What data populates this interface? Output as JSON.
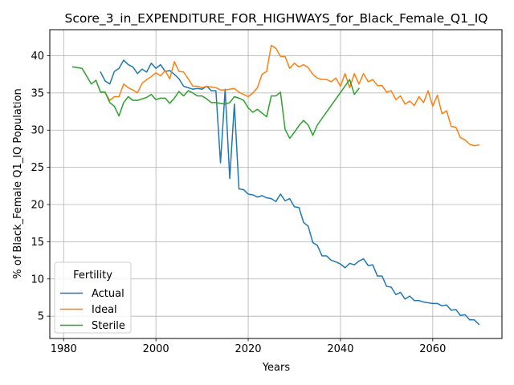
{
  "chart_data": {
    "type": "line",
    "title": "Score_3_in_EXPENDITURE_FOR_HIGHWAYS_for_Black_Female_Q1_IQ",
    "xlabel": "Years",
    "ylabel": "% of Black_Female Q1_IQ Population",
    "xlim": [
      1977,
      2075
    ],
    "ylim": [
      2,
      43.5
    ],
    "xticks": [
      1980,
      2000,
      2020,
      2040,
      2060
    ],
    "yticks": [
      5,
      10,
      15,
      20,
      25,
      30,
      35,
      40
    ],
    "grid": true,
    "legend": {
      "title": "Fertility",
      "position": "lower-left"
    },
    "series": [
      {
        "name": "Actual",
        "color": "#1f77b4",
        "x": [
          1988,
          1989,
          1990,
          1991,
          1992,
          1993,
          1994,
          1995,
          1996,
          1997,
          1998,
          1999,
          2000,
          2001,
          2002,
          2003,
          2004,
          2005,
          2006,
          2007,
          2008,
          2009,
          2010,
          2011,
          2012,
          2013,
          2014,
          2015,
          2016,
          2017,
          2018,
          2019,
          2020,
          2021,
          2022,
          2023,
          2024,
          2025,
          2026,
          2027,
          2028,
          2029,
          2030,
          2031,
          2032,
          2033,
          2034,
          2035,
          2036,
          2037,
          2038,
          2039,
          2040,
          2041,
          2042,
          2043,
          2044,
          2045,
          2046,
          2047,
          2048,
          2049,
          2050,
          2051,
          2052,
          2053,
          2054,
          2055,
          2056,
          2057,
          2058,
          2059,
          2060,
          2061,
          2062,
          2063,
          2064,
          2065,
          2066,
          2067,
          2068,
          2069,
          2070
        ],
        "values": [
          37.8,
          36.6,
          36.2,
          37.9,
          38.3,
          39.4,
          38.8,
          38.5,
          37.6,
          38.2,
          37.8,
          39.0,
          38.3,
          38.8,
          37.9,
          38.0,
          37.5,
          36.9,
          35.9,
          35.7,
          35.5,
          35.6,
          35.5,
          35.9,
          35.3,
          35.3,
          25.6,
          35.5,
          23.5,
          33.5,
          22.1,
          22.0,
          21.4,
          21.3,
          21.0,
          21.2,
          20.9,
          20.8,
          20.4,
          21.4,
          20.5,
          20.8,
          19.7,
          19.6,
          17.6,
          17.1,
          14.9,
          14.5,
          13.1,
          13.1,
          12.5,
          12.3,
          12.0,
          11.5,
          12.1,
          11.9,
          12.4,
          12.7,
          11.8,
          11.9,
          10.4,
          10.4,
          9.0,
          8.9,
          7.9,
          8.2,
          7.3,
          7.7,
          7.1,
          7.1,
          6.9,
          6.8,
          6.7,
          6.7,
          6.4,
          6.5,
          5.8,
          5.9,
          5.1,
          5.2,
          4.5,
          4.5,
          3.9
        ]
      },
      {
        "name": "Ideal",
        "color": "#ff7f0e",
        "x": [
          1989,
          1990,
          1991,
          1992,
          1993,
          1994,
          1995,
          1996,
          1997,
          1998,
          1999,
          2000,
          2001,
          2002,
          2003,
          2004,
          2005,
          2006,
          2007,
          2008,
          2009,
          2010,
          2011,
          2012,
          2013,
          2014,
          2015,
          2016,
          2017,
          2018,
          2019,
          2020,
          2021,
          2022,
          2023,
          2024,
          2025,
          2026,
          2027,
          2028,
          2029,
          2030,
          2031,
          2032,
          2033,
          2034,
          2035,
          2036,
          2037,
          2038,
          2039,
          2040,
          2041,
          2042,
          2043,
          2044,
          2045,
          2046,
          2047,
          2048,
          2049,
          2050,
          2051,
          2052,
          2053,
          2054,
          2055,
          2056,
          2057,
          2058,
          2059,
          2060,
          2061,
          2062,
          2063,
          2064,
          2065,
          2066,
          2067,
          2068,
          2069,
          2070
        ],
        "values": [
          35.0,
          34.0,
          34.5,
          34.5,
          36.2,
          35.7,
          35.4,
          35.0,
          36.3,
          36.8,
          37.2,
          37.7,
          37.3,
          38.0,
          36.9,
          39.2,
          37.9,
          37.8,
          36.9,
          35.9,
          35.9,
          35.7,
          35.9,
          35.8,
          35.7,
          35.4,
          35.4,
          35.5,
          35.6,
          35.1,
          34.8,
          34.5,
          35.0,
          35.7,
          37.5,
          37.9,
          41.4,
          41.0,
          39.9,
          39.9,
          38.3,
          39.0,
          38.5,
          38.8,
          38.4,
          37.5,
          37.0,
          36.8,
          36.8,
          36.5,
          37.0,
          35.9,
          37.6,
          35.7,
          37.6,
          36.2,
          37.6,
          36.5,
          36.8,
          36.0,
          36.0,
          35.1,
          35.3,
          34.1,
          34.6,
          33.5,
          33.9,
          33.3,
          34.5,
          33.7,
          35.3,
          33.2,
          34.7,
          32.2,
          32.6,
          30.5,
          30.4,
          29.0,
          28.7,
          28.1,
          27.9,
          28.0
        ]
      },
      {
        "name": "Sterile",
        "color": "#2ca02c",
        "x": [
          1982,
          1984,
          1986,
          1987,
          1988,
          1989,
          1990,
          1991,
          1992,
          1993,
          1994,
          1995,
          1996,
          1997,
          1998,
          1999,
          2000,
          2001,
          2002,
          2003,
          2004,
          2005,
          2006,
          2007,
          2008,
          2009,
          2010,
          2011,
          2012,
          2013,
          2014,
          2015,
          2016,
          2017,
          2018,
          2019,
          2020,
          2021,
          2022,
          2023,
          2024,
          2025,
          2026,
          2027,
          2028,
          2029,
          2030,
          2031,
          2032,
          2033,
          2034,
          2035,
          2042,
          2043,
          2044
        ],
        "values": [
          38.5,
          38.3,
          36.2,
          36.7,
          35.1,
          35.1,
          33.7,
          33.2,
          31.9,
          33.7,
          34.5,
          34.0,
          34.0,
          34.2,
          34.4,
          34.8,
          34.1,
          34.3,
          34.3,
          33.6,
          34.3,
          35.2,
          34.6,
          35.3,
          35.0,
          34.6,
          34.6,
          34.2,
          33.7,
          33.7,
          33.6,
          33.5,
          33.7,
          34.5,
          34.3,
          34.0,
          33.0,
          32.4,
          32.8,
          32.3,
          31.8,
          34.6,
          34.6,
          35.1,
          30.1,
          28.9,
          29.7,
          30.6,
          31.3,
          30.7,
          29.3,
          30.7,
          36.8,
          34.8,
          35.6
        ]
      }
    ]
  }
}
